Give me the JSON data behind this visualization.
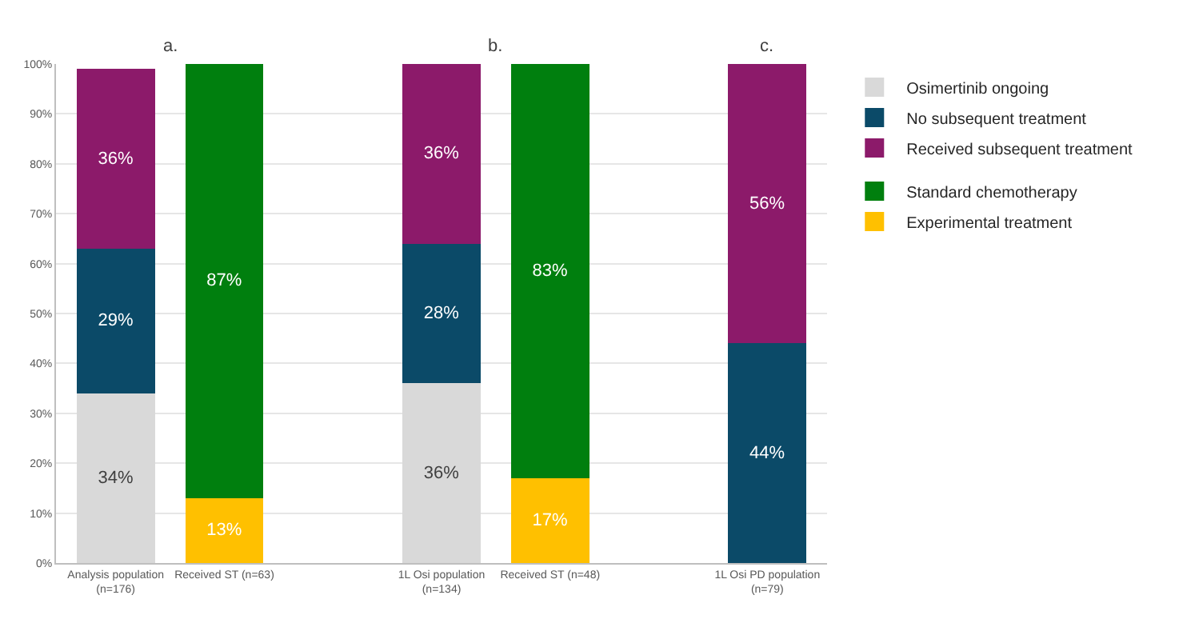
{
  "chart_data": {
    "type": "bar",
    "stacked": true,
    "categories": [
      "Analysis population\n(n=176)",
      "Received ST (n=63)",
      null,
      "1L Osi population\n(n=134)",
      "Received ST (n=48)",
      null,
      "1L Osi PD population\n(n=79)"
    ],
    "series": [
      {
        "name": "Osimertinib ongoing",
        "color": "#d9d9d9",
        "values": [
          34,
          null,
          null,
          36,
          null,
          null,
          null
        ],
        "value_labels": [
          "34%",
          null,
          null,
          "36%",
          null,
          null,
          null
        ]
      },
      {
        "name": "No subsequent treatment",
        "color": "#0b4a68",
        "values": [
          29,
          null,
          null,
          28,
          null,
          null,
          44
        ],
        "value_labels": [
          "29%",
          null,
          null,
          "28%",
          null,
          null,
          "44%"
        ]
      },
      {
        "name": "Received subsequent treatment",
        "color": "#8c1a6a",
        "values": [
          36,
          null,
          null,
          36,
          null,
          null,
          56
        ],
        "value_labels": [
          "36%",
          null,
          null,
          "36%",
          null,
          null,
          "56%"
        ]
      },
      {
        "name": "Experimental treatment",
        "color": "#ffc000",
        "values": [
          null,
          13,
          null,
          null,
          17,
          null,
          null
        ],
        "value_labels": [
          null,
          "13%",
          null,
          null,
          "17%",
          null,
          null
        ]
      },
      {
        "name": "Standard chemotherapy",
        "color": "#007f0e",
        "values": [
          null,
          87,
          null,
          null,
          83,
          null,
          null
        ],
        "value_labels": [
          null,
          "87%",
          null,
          null,
          "83%",
          null,
          null
        ]
      }
    ],
    "ylim": [
      0,
      100
    ],
    "yticks": [
      {
        "value": 0,
        "label": "0%"
      },
      {
        "value": 10,
        "label": "10%"
      },
      {
        "value": 20,
        "label": "20%"
      },
      {
        "value": 30,
        "label": "30%"
      },
      {
        "value": 40,
        "label": "40%"
      },
      {
        "value": 50,
        "label": "50%"
      },
      {
        "value": 60,
        "label": "60%"
      },
      {
        "value": 70,
        "label": "70%"
      },
      {
        "value": 80,
        "label": "80%"
      },
      {
        "value": 90,
        "label": "90%"
      },
      {
        "value": 100,
        "label": "100%"
      }
    ],
    "grid": "y",
    "legend": "right",
    "annotations": [
      "a.",
      "b.",
      "c."
    ]
  }
}
